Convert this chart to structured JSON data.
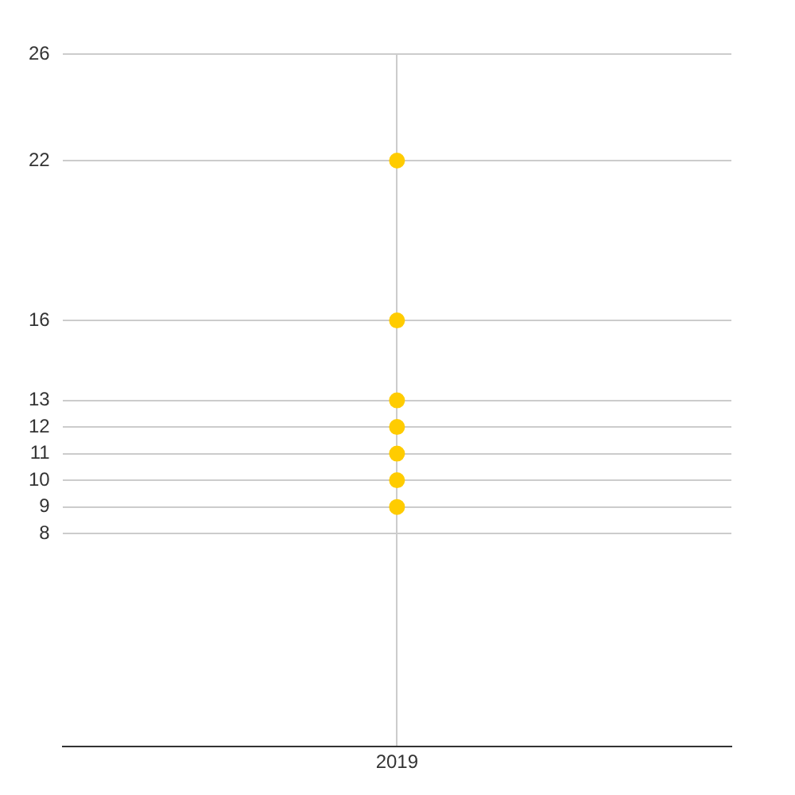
{
  "chart_data": {
    "type": "scatter",
    "categories": [
      "2019"
    ],
    "series": [
      {
        "color": "#ffcc00",
        "values": [
          22
        ]
      },
      {
        "color": "#ffcc00",
        "values": [
          16
        ]
      },
      {
        "color": "#ffcc00",
        "values": [
          13
        ]
      },
      {
        "color": "#ffcc00",
        "values": [
          12
        ]
      },
      {
        "color": "#ffcc00",
        "values": [
          11
        ]
      },
      {
        "color": "#ffcc00",
        "values": [
          10
        ]
      },
      {
        "color": "#ffcc00",
        "values": [
          9
        ]
      }
    ],
    "marker": "circle",
    "ylim": [
      0,
      26
    ],
    "yticks": [
      8,
      9,
      10,
      11,
      12,
      13,
      16,
      22,
      26
    ],
    "grid": true,
    "legend": false
  }
}
